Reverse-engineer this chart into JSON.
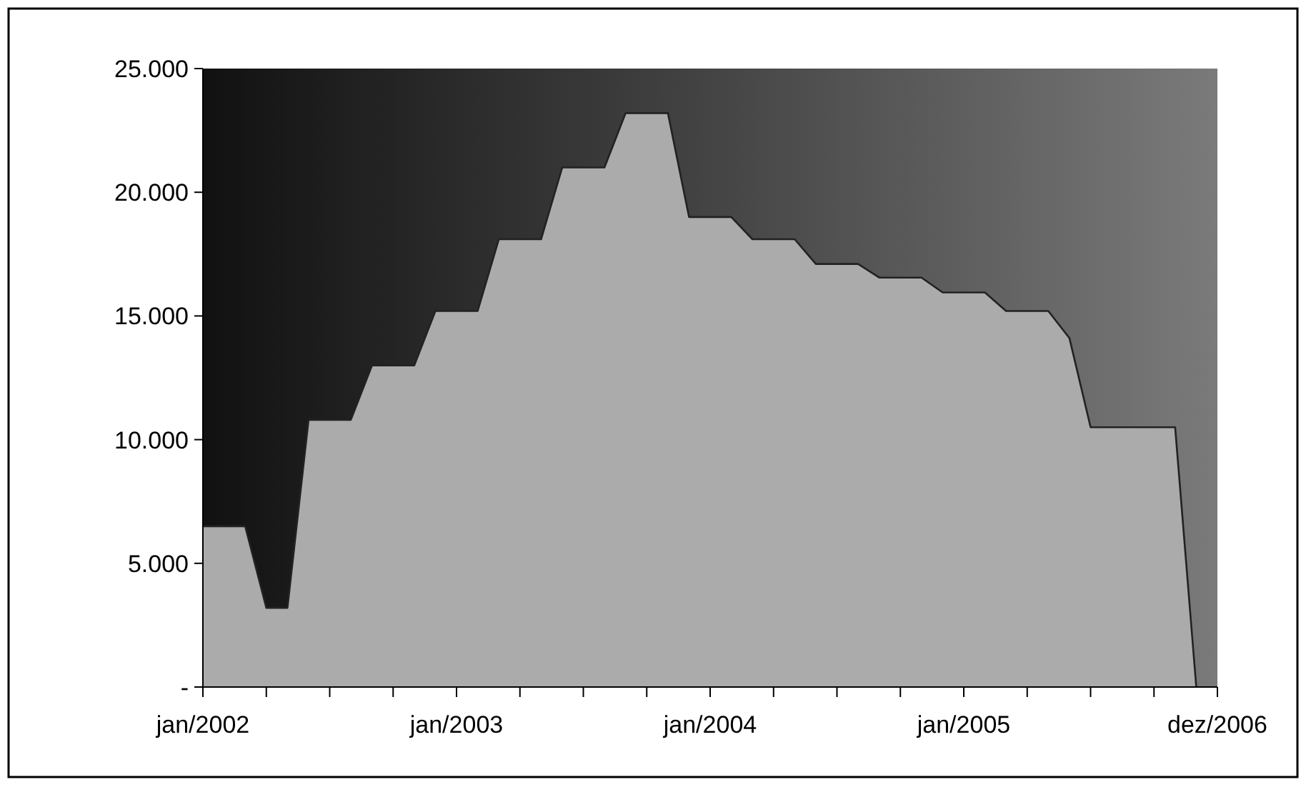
{
  "chart_data": {
    "type": "area",
    "categories": [
      "jan/2002",
      null,
      null,
      null,
      null,
      null,
      null,
      null,
      null,
      null,
      null,
      null,
      "jan/2003",
      null,
      null,
      null,
      null,
      null,
      null,
      null,
      null,
      null,
      null,
      null,
      "jan/2004",
      null,
      null,
      null,
      null,
      null,
      null,
      null,
      null,
      null,
      null,
      null,
      "jan/2005",
      null,
      null,
      null,
      null,
      null,
      null,
      null,
      null,
      null,
      null,
      null,
      "dez/2006"
    ],
    "series": [
      {
        "color": "#ababab",
        "values": [
          6500,
          6500,
          6500,
          3200,
          3200,
          10800,
          10800,
          10800,
          13000,
          13000,
          13000,
          15200,
          15200,
          15200,
          18100,
          18100,
          18100,
          21000,
          21000,
          21000,
          23200,
          23200,
          23200,
          19000,
          19000,
          19000,
          18100,
          18100,
          18100,
          17100,
          17100,
          17100,
          16550,
          16550,
          16550,
          15950,
          15950,
          15950,
          15200,
          15200,
          15200,
          14100,
          10500,
          10500,
          10500,
          10500,
          10500,
          0,
          null
        ]
      }
    ],
    "ylim": [
      0,
      25000
    ],
    "yticks": [
      {
        "value": 0,
        "label": "-"
      },
      {
        "value": 5000,
        "label": "5.000"
      },
      {
        "value": 10000,
        "label": "10.000"
      },
      {
        "value": 15000,
        "label": "15.000"
      },
      {
        "value": 20000,
        "label": "20.000"
      },
      {
        "value": 25000,
        "label": "25.000"
      }
    ],
    "grid": false
  }
}
